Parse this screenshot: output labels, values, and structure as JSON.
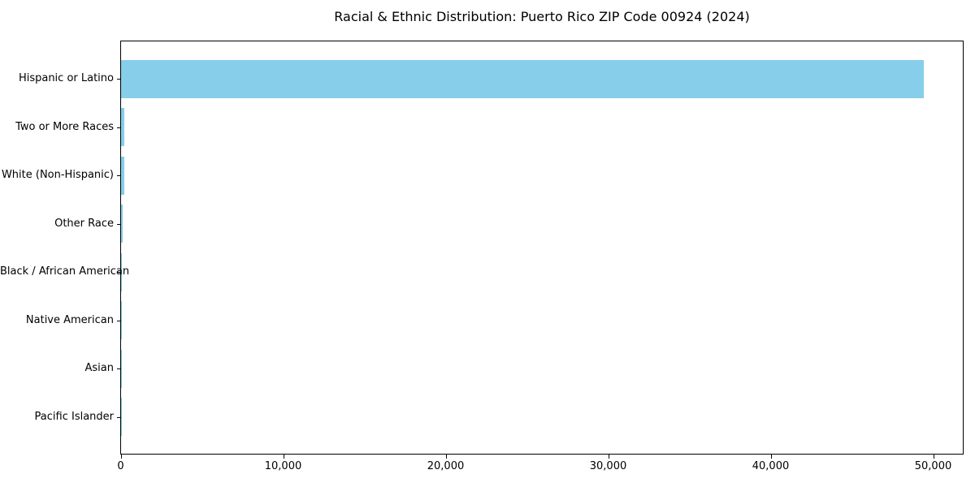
{
  "chart_data": {
    "type": "bar",
    "orientation": "horizontal",
    "title": "Racial & Ethnic Distribution: Puerto Rico ZIP Code 00924 (2024)",
    "categories": [
      "Hispanic or Latino",
      "Two or More Races",
      "White (Non-Hispanic)",
      "Other Race",
      "Black / African American",
      "Native American",
      "Asian",
      "Pacific Islander"
    ],
    "values": [
      49400,
      200,
      190,
      75,
      60,
      15,
      8,
      4
    ],
    "xlabel": "",
    "ylabel": "",
    "xlim": [
      0,
      51900
    ],
    "x_ticks": [
      0,
      10000,
      20000,
      30000,
      40000,
      50000
    ],
    "x_tick_labels": [
      "0",
      "10,000",
      "20,000",
      "30,000",
      "40,000",
      "50,000"
    ],
    "grid": false,
    "legend": "none",
    "bar_color": "#87CEEB",
    "axis_color": "#000000",
    "background_color": "#FFFFFF"
  }
}
